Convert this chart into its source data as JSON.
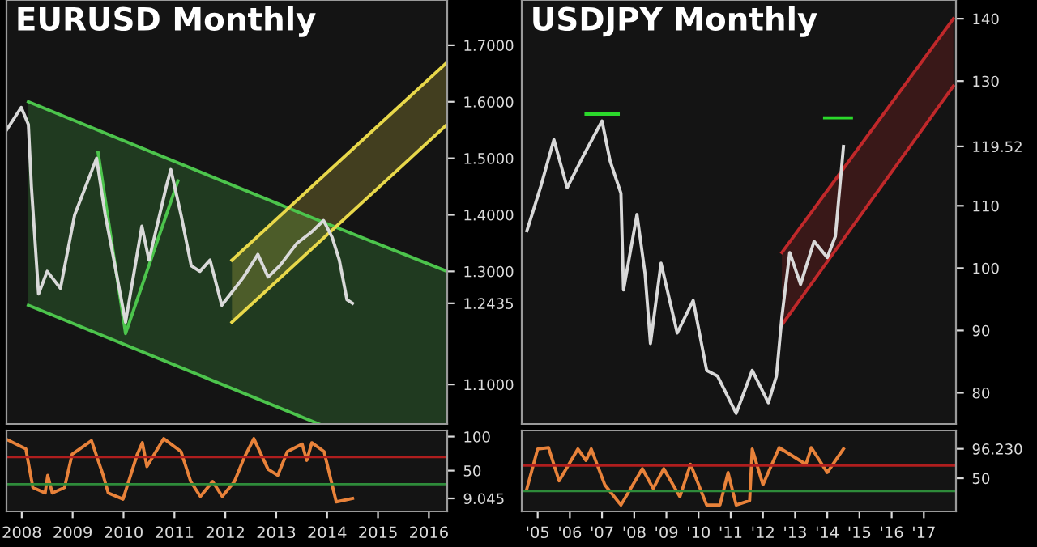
{
  "chart_data": [
    {
      "type": "line",
      "title": "EURUSD Monthly",
      "xlim": [
        2008.2,
        2016.86
      ],
      "ylim": [
        1.03,
        1.78
      ],
      "yticks": [
        {
          "value": 1.1,
          "label": "1.1000"
        },
        {
          "value": 1.2435,
          "label": "1.2435"
        },
        {
          "value": 1.3,
          "label": "1.3000"
        },
        {
          "value": 1.4,
          "label": "1.4000"
        },
        {
          "value": 1.5,
          "label": "1.5000"
        },
        {
          "value": 1.6,
          "label": "1.6000"
        },
        {
          "value": 1.7,
          "label": "1.7000"
        }
      ],
      "tick_labels": "y",
      "grid": false,
      "series": [
        {
          "color": "#4cc44c",
          "x": [
            2008.63,
            2014.34,
            2016.86
          ],
          "values": [
            1.6,
            1.39,
            1.3
          ],
          "lower": [
            1.24,
            1.03,
            1.03
          ],
          "upper": [
            1.6,
            1.39,
            1.3
          ]
        },
        {
          "color": "#4cc44c",
          "x": [
            2008.63,
            2014.34
          ],
          "values": [
            1.24,
            1.03
          ]
        },
        {
          "color": "#4cc44c",
          "x": [
            2010.0,
            2010.54,
            2011.57
          ],
          "values": [
            1.51,
            1.19,
            1.46
          ]
        },
        {
          "color": "#e8d84a",
          "x": [
            2012.63,
            2016.86
          ],
          "values": [
            1.32,
            1.67
          ],
          "lower": [
            1.21,
            1.56
          ],
          "upper": [
            1.32,
            1.67
          ]
        },
        {
          "color": "#e8d84a",
          "x": [
            2012.63,
            2016.86
          ],
          "values": [
            1.21,
            1.56
          ]
        },
        {
          "color": "#d9d9d9",
          "x": [
            2008.2,
            2008.49,
            2008.63,
            2008.69,
            2008.83,
            2009.0,
            2009.26,
            2009.54,
            2009.97,
            2010.14,
            2010.29,
            2010.54,
            2010.71,
            2010.86,
            2011.0,
            2011.34,
            2011.43,
            2011.63,
            2011.83,
            2012.0,
            2012.2,
            2012.43,
            2012.69,
            2012.86,
            2013.14,
            2013.34,
            2013.57,
            2013.91,
            2014.2,
            2014.43,
            2014.6,
            2014.74,
            2014.89,
            2015.0
          ],
          "values": [
            1.55,
            1.59,
            1.56,
            1.45,
            1.26,
            1.3,
            1.27,
            1.4,
            1.5,
            1.4,
            1.33,
            1.21,
            1.3,
            1.38,
            1.32,
            1.45,
            1.48,
            1.4,
            1.31,
            1.3,
            1.32,
            1.24,
            1.27,
            1.29,
            1.33,
            1.29,
            1.31,
            1.35,
            1.37,
            1.39,
            1.36,
            1.32,
            1.25,
            1.2435
          ]
        }
      ]
    },
    {
      "type": "line",
      "xlim": [
        2008.2,
        2016.86
      ],
      "ylim": [
        -10,
        109
      ],
      "xticks": [
        {
          "value": 2008.5,
          "label": "2008"
        },
        {
          "value": 2009.5,
          "label": "2009"
        },
        {
          "value": 2010.5,
          "label": "2010"
        },
        {
          "value": 2011.5,
          "label": "2011"
        },
        {
          "value": 2012.5,
          "label": "2012"
        },
        {
          "value": 2013.5,
          "label": "2013"
        },
        {
          "value": 2014.5,
          "label": "2014"
        },
        {
          "value": 2015.5,
          "label": "2015"
        },
        {
          "value": 2016.5,
          "label": "2016"
        }
      ],
      "yticks": [
        {
          "value": 9.045,
          "label": "9.045"
        },
        50,
        100
      ],
      "grid": false,
      "ref_lines": [
        {
          "axis": "y",
          "value": 70,
          "color": "#b01e1e"
        },
        {
          "axis": "y",
          "value": 30,
          "color": "#2e8b3a"
        }
      ],
      "series": [
        {
          "color": "#e8823a",
          "x": [
            2008.2,
            2008.58,
            2008.72,
            2008.96,
            2009.01,
            2009.1,
            2009.34,
            2009.49,
            2009.87,
            2010.1,
            2010.2,
            2010.49,
            2010.77,
            2010.87,
            2010.96,
            2011.29,
            2011.63,
            2011.82,
            2012.01,
            2012.25,
            2012.44,
            2012.68,
            2012.87,
            2013.06,
            2013.34,
            2013.53,
            2013.72,
            2014.01,
            2014.1,
            2014.2,
            2014.44,
            2014.68,
            2015.0
          ],
          "values": [
            96,
            82,
            25,
            17,
            43,
            17,
            25,
            74,
            94,
            43,
            17,
            8,
            74,
            91,
            56,
            97,
            78,
            34,
            12,
            34,
            12,
            34,
            69,
            97,
            52,
            43,
            78,
            89,
            65,
            91,
            78,
            4,
            9.045
          ]
        }
      ]
    },
    {
      "type": "line",
      "title": "USDJPY Monthly",
      "xlim": [
        "2005-01",
        "2018-07"
      ],
      "ylim": [
        75,
        143
      ],
      "yticks": [
        80,
        90,
        100,
        110,
        {
          "value": 119.52,
          "label": "119.52"
        },
        130,
        140
      ],
      "tick_labels": "y",
      "grid": false,
      "series": [
        {
          "color": "#c0282a",
          "x": [
            "2013-02",
            "2018-06"
          ],
          "values": [
            102.5,
            140
          ],
          "lower": [
            90.9,
            129.2
          ],
          "upper": [
            102.5,
            140
          ]
        },
        {
          "color": "#c0282a",
          "x": [
            "2013-02",
            "2018-06"
          ],
          "values": [
            90.9,
            129.2
          ]
        },
        {
          "color": "#2bd92b",
          "x": [
            "2007-01",
            "2008-01"
          ],
          "values": [
            124.7,
            124.7
          ]
        },
        {
          "color": "#2bd92b",
          "x": [
            "2014-06",
            "2015-04"
          ],
          "values": [
            124.1,
            124.1
          ]
        },
        {
          "color": "#d9d9d9",
          "x": [
            "2005-03",
            "2005-08",
            "2006-01",
            "2006-06",
            "2006-12",
            "2007-07",
            "2007-10",
            "2008-02",
            "2008-03",
            "2008-08",
            "2008-11",
            "2009-01",
            "2009-05",
            "2009-11",
            "2010-05",
            "2010-10",
            "2011-02",
            "2011-09",
            "2012-03",
            "2012-09",
            "2012-12",
            "2013-02",
            "2013-05",
            "2013-09",
            "2014-02",
            "2014-07",
            "2014-10",
            "2015-01"
          ],
          "values": [
            106.0,
            112.9,
            120.6,
            112.9,
            118.0,
            123.6,
            117.2,
            112.0,
            96.5,
            108.6,
            99.1,
            87.9,
            100.8,
            89.6,
            94.8,
            83.6,
            82.7,
            76.7,
            83.6,
            78.4,
            82.7,
            92.2,
            102.5,
            97.4,
            104.3,
            101.7,
            105.1,
            119.52
          ]
        }
      ]
    },
    {
      "type": "line",
      "xlim": [
        "2005-01",
        "2018-07"
      ],
      "ylim": [
        -2,
        125
      ],
      "xticks": [
        {
          "value": "2005-07",
          "label": "'05"
        },
        {
          "value": "2006-07",
          "label": "'06"
        },
        {
          "value": "2007-07",
          "label": "'07"
        },
        {
          "value": "2008-07",
          "label": "'08"
        },
        {
          "value": "2009-07",
          "label": "'09"
        },
        {
          "value": "2010-07",
          "label": "'10"
        },
        {
          "value": "2011-07",
          "label": "'11"
        },
        {
          "value": "2012-07",
          "label": "'12"
        },
        {
          "value": "2013-07",
          "label": "'13"
        },
        {
          "value": "2014-07",
          "label": "'14"
        },
        {
          "value": "2015-07",
          "label": "'15"
        },
        {
          "value": "2016-07",
          "label": "'16"
        },
        {
          "value": "2017-07",
          "label": "'17"
        }
      ],
      "yticks": [
        50,
        {
          "value": 96.23,
          "label": "96.230"
        }
      ],
      "grid": false,
      "ref_lines": [
        {
          "axis": "y",
          "value": 70,
          "color": "#b01e1e"
        },
        {
          "axis": "y",
          "value": 30,
          "color": "#2e8b3a"
        }
      ],
      "series": [
        {
          "color": "#e8823a",
          "x": [
            "2005-03",
            "2005-07",
            "2005-11",
            "2006-03",
            "2006-10",
            "2007-01",
            "2007-03",
            "2007-08",
            "2008-02",
            "2008-10",
            "2009-02",
            "2009-06",
            "2009-12",
            "2010-04",
            "2010-10",
            "2011-03",
            "2011-06",
            "2011-09",
            "2012-02",
            "2012-03",
            "2012-07",
            "2013-01",
            "2013-11",
            "2014-01",
            "2014-07",
            "2015-01"
          ],
          "values": [
            34,
            96,
            98,
            46,
            96,
            78,
            96,
            40,
            8,
            65,
            34,
            65,
            21,
            72,
            8,
            8,
            59,
            8,
            15,
            96,
            40,
            98,
            72,
            98,
            59,
            96.23
          ]
        }
      ]
    }
  ]
}
